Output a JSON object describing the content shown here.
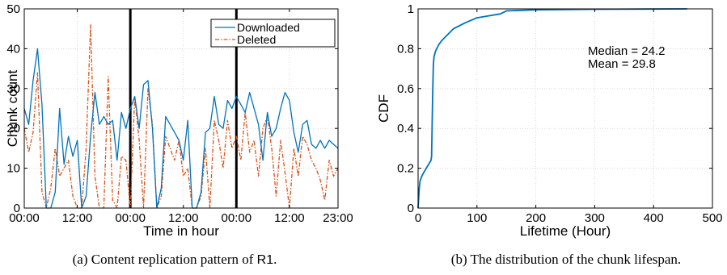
{
  "colors": {
    "downloaded": "#0072BD",
    "deleted": "#D95319",
    "axis": "#000000",
    "grid": "#d9d9d9"
  },
  "chart_data": [
    {
      "type": "line",
      "caption_prefix": "(a) Content replication pattern of ",
      "caption_code": "R1",
      "caption_suffix": ".",
      "xlabel": "Time in hour",
      "ylabel": "Chunk count",
      "xlim": [
        0,
        71
      ],
      "ylim": [
        0,
        50
      ],
      "xticks": [
        0,
        12,
        24,
        36,
        48,
        60,
        71
      ],
      "xtick_labels": [
        "00:00",
        "12:00",
        "00:00",
        "12:00",
        "00:00",
        "12:00",
        "23:00"
      ],
      "yticks": [
        0,
        10,
        20,
        30,
        40,
        50
      ],
      "ytick_labels": [
        "0",
        "10",
        "20",
        "30",
        "40",
        "50"
      ],
      "day_boundaries": [
        24,
        48
      ],
      "grid": true,
      "legend_position": "top-right",
      "series": [
        {
          "name": "Downloaded",
          "style": "solid",
          "x": [
            0,
            1,
            2,
            3,
            4,
            5,
            6,
            7,
            8,
            9,
            10,
            11,
            12,
            13,
            14,
            15,
            16,
            17,
            18,
            19,
            20,
            21,
            22,
            23,
            24,
            25,
            26,
            27,
            28,
            29,
            30,
            31,
            32,
            33,
            34,
            35,
            36,
            37,
            38,
            39,
            40,
            41,
            42,
            43,
            44,
            45,
            46,
            47,
            48,
            49,
            50,
            51,
            52,
            53,
            54,
            55,
            56,
            57,
            58,
            59,
            60,
            61,
            62,
            63,
            64,
            65,
            66,
            67,
            68,
            69,
            70,
            71
          ],
          "values": [
            25,
            21,
            32,
            40,
            26,
            0,
            0,
            4,
            25,
            11,
            18,
            13,
            17,
            0,
            3,
            18,
            29,
            21,
            23,
            21,
            22,
            12,
            24,
            20,
            25,
            28,
            20,
            31,
            32,
            20,
            0,
            5,
            23,
            21,
            19,
            17,
            12,
            22,
            0,
            0,
            4,
            19,
            20,
            28,
            21,
            20,
            27,
            25,
            28,
            26,
            24,
            29,
            25,
            21,
            12,
            24,
            18,
            20,
            25,
            29,
            27,
            19,
            14,
            21,
            22,
            16,
            15,
            17,
            15,
            17,
            16,
            15
          ]
        },
        {
          "name": "Deleted",
          "style": "dash-dot",
          "x": [
            0,
            1,
            2,
            3,
            4,
            5,
            6,
            7,
            8,
            9,
            10,
            11,
            12,
            13,
            14,
            15,
            16,
            17,
            18,
            19,
            20,
            21,
            22,
            23,
            24,
            25,
            26,
            27,
            28,
            29,
            30,
            31,
            32,
            33,
            34,
            35,
            36,
            37,
            38,
            39,
            40,
            41,
            42,
            43,
            44,
            45,
            46,
            47,
            48,
            49,
            50,
            51,
            52,
            53,
            54,
            55,
            56,
            57,
            58,
            59,
            60,
            61,
            62,
            63,
            64,
            65,
            66,
            67,
            68,
            69,
            70,
            71
          ],
          "values": [
            20,
            14,
            19,
            34,
            4,
            0,
            5,
            15,
            8,
            10,
            12,
            3,
            0,
            0,
            15,
            46,
            8,
            0,
            0,
            33,
            2,
            0,
            13,
            12,
            0,
            28,
            17,
            0,
            30,
            21,
            0,
            3,
            18,
            15,
            12,
            17,
            8,
            10,
            0,
            0,
            3,
            15,
            0,
            22,
            17,
            10,
            22,
            15,
            18,
            12,
            24,
            14,
            17,
            8,
            20,
            23,
            15,
            3,
            17,
            9,
            0,
            15,
            8,
            18,
            16,
            12,
            10,
            7,
            2,
            12,
            8,
            10
          ]
        }
      ]
    },
    {
      "type": "line",
      "caption": "(b) The distribution of the chunk lifespan.",
      "xlabel": "Lifetime (Hour)",
      "ylabel": "CDF",
      "xlim": [
        0,
        500
      ],
      "ylim": [
        0,
        1
      ],
      "xticks": [
        0,
        100,
        200,
        300,
        400,
        500
      ],
      "xtick_labels": [
        "0",
        "100",
        "200",
        "300",
        "400",
        "500"
      ],
      "yticks": [
        0,
        0.2,
        0.4,
        0.6,
        0.8,
        1
      ],
      "ytick_labels": [
        "0",
        "0.2",
        "0.4",
        "0.6",
        "0.8",
        "1"
      ],
      "grid": true,
      "annotations": [
        "Median = 24.2",
        "Mean = 29.8"
      ],
      "series": [
        {
          "style": "solid",
          "x": [
            0,
            1,
            2,
            3,
            5,
            8,
            12,
            16,
            20,
            22,
            23,
            24,
            25,
            26,
            27,
            30,
            35,
            40,
            50,
            60,
            80,
            100,
            120,
            140,
            150,
            200,
            300,
            400,
            457
          ],
          "values": [
            0,
            0.05,
            0.1,
            0.13,
            0.15,
            0.17,
            0.19,
            0.21,
            0.23,
            0.24,
            0.26,
            0.45,
            0.6,
            0.72,
            0.76,
            0.79,
            0.82,
            0.84,
            0.87,
            0.9,
            0.93,
            0.955,
            0.965,
            0.975,
            0.99,
            0.995,
            0.998,
            0.999,
            1.0
          ]
        }
      ]
    }
  ]
}
